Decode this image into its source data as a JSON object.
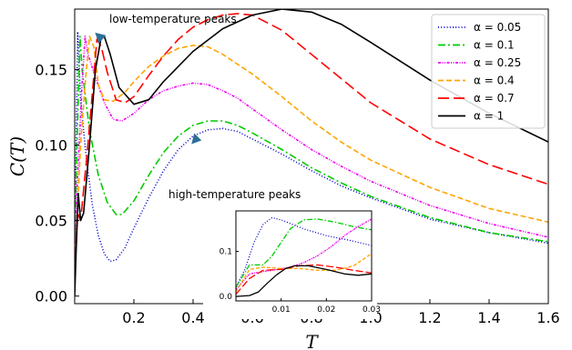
{
  "chart_data": [
    {
      "type": "line",
      "xlabel": "T",
      "ylabel": "C(T)",
      "xlim": [
        0,
        1.6
      ],
      "ylim": [
        -0.005,
        0.19
      ],
      "xticks": [
        "0.2",
        "0.4",
        "0.6",
        "0.8",
        "1.0",
        "1.2",
        "1.4",
        "1.6"
      ],
      "yticks": [
        "0.00",
        "0.05",
        "0.10",
        "0.15"
      ],
      "grid": false,
      "legend_position": "top-right",
      "annotations": [
        {
          "text": "low-temperature peaks",
          "arrow_to": [
            0.075,
            0.175
          ]
        },
        {
          "text": "high-temperature peaks",
          "arrow_to": [
            0.41,
            0.103
          ]
        }
      ],
      "series": [
        {
          "name": "α = 0.05",
          "color": "#0000cc",
          "dash": "1,2.2",
          "points": [
            [
              0,
              0.02
            ],
            [
              0.005,
              0.1
            ],
            [
              0.01,
              0.175
            ],
            [
              0.02,
              0.13
            ],
            [
              0.04,
              0.09
            ],
            [
              0.06,
              0.06
            ],
            [
              0.08,
              0.04
            ],
            [
              0.1,
              0.028
            ],
            [
              0.12,
              0.023
            ],
            [
              0.14,
              0.024
            ],
            [
              0.17,
              0.032
            ],
            [
              0.2,
              0.045
            ],
            [
              0.25,
              0.065
            ],
            [
              0.3,
              0.083
            ],
            [
              0.35,
              0.097
            ],
            [
              0.4,
              0.106
            ],
            [
              0.45,
              0.11
            ],
            [
              0.5,
              0.111
            ],
            [
              0.55,
              0.109
            ],
            [
              0.6,
              0.104
            ],
            [
              0.7,
              0.094
            ],
            [
              0.8,
              0.083
            ],
            [
              0.9,
              0.073
            ],
            [
              1.0,
              0.065
            ],
            [
              1.2,
              0.051
            ],
            [
              1.4,
              0.042
            ],
            [
              1.6,
              0.035
            ]
          ]
        },
        {
          "name": "α = 0.1",
          "color": "#00cc00",
          "dash": "8,3,2,3",
          "points": [
            [
              0,
              0.02
            ],
            [
              0.005,
              0.08
            ],
            [
              0.012,
              0.13
            ],
            [
              0.018,
              0.172
            ],
            [
              0.025,
              0.15
            ],
            [
              0.05,
              0.11
            ],
            [
              0.08,
              0.08
            ],
            [
              0.11,
              0.062
            ],
            [
              0.14,
              0.054
            ],
            [
              0.16,
              0.054
            ],
            [
              0.2,
              0.063
            ],
            [
              0.25,
              0.08
            ],
            [
              0.3,
              0.095
            ],
            [
              0.35,
              0.106
            ],
            [
              0.4,
              0.113
            ],
            [
              0.45,
              0.116
            ],
            [
              0.5,
              0.116
            ],
            [
              0.55,
              0.113
            ],
            [
              0.6,
              0.108
            ],
            [
              0.7,
              0.097
            ],
            [
              0.8,
              0.085
            ],
            [
              0.9,
              0.075
            ],
            [
              1.0,
              0.066
            ],
            [
              1.2,
              0.052
            ],
            [
              1.4,
              0.042
            ],
            [
              1.6,
              0.036
            ]
          ]
        },
        {
          "name": "α = 0.25",
          "color": "#ee00ee",
          "dash": "3,1.5,1,1.5,1,1.5",
          "points": [
            [
              0,
              0.015
            ],
            [
              0.005,
              0.06
            ],
            [
              0.015,
              0.1
            ],
            [
              0.025,
              0.14
            ],
            [
              0.035,
              0.172
            ],
            [
              0.045,
              0.16
            ],
            [
              0.07,
              0.145
            ],
            [
              0.1,
              0.128
            ],
            [
              0.13,
              0.117
            ],
            [
              0.16,
              0.116
            ],
            [
              0.2,
              0.121
            ],
            [
              0.25,
              0.13
            ],
            [
              0.3,
              0.136
            ],
            [
              0.35,
              0.139
            ],
            [
              0.4,
              0.141
            ],
            [
              0.45,
              0.14
            ],
            [
              0.5,
              0.136
            ],
            [
              0.55,
              0.131
            ],
            [
              0.6,
              0.124
            ],
            [
              0.7,
              0.11
            ],
            [
              0.8,
              0.097
            ],
            [
              0.9,
              0.086
            ],
            [
              1.0,
              0.076
            ],
            [
              1.2,
              0.06
            ],
            [
              1.4,
              0.048
            ],
            [
              1.6,
              0.039
            ]
          ]
        },
        {
          "name": "α = 0.4",
          "color": "#ffa500",
          "dash": "6,3",
          "points": [
            [
              0,
              0.015
            ],
            [
              0.01,
              0.06
            ],
            [
              0.02,
              0.1
            ],
            [
              0.035,
              0.14
            ],
            [
              0.05,
              0.172
            ],
            [
              0.065,
              0.165
            ],
            [
              0.08,
              0.14
            ],
            [
              0.1,
              0.13
            ],
            [
              0.13,
              0.129
            ],
            [
              0.17,
              0.135
            ],
            [
              0.2,
              0.142
            ],
            [
              0.25,
              0.152
            ],
            [
              0.3,
              0.159
            ],
            [
              0.35,
              0.164
            ],
            [
              0.4,
              0.166
            ],
            [
              0.45,
              0.165
            ],
            [
              0.5,
              0.16
            ],
            [
              0.6,
              0.147
            ],
            [
              0.7,
              0.132
            ],
            [
              0.8,
              0.116
            ],
            [
              0.9,
              0.102
            ],
            [
              1.0,
              0.09
            ],
            [
              1.2,
              0.072
            ],
            [
              1.4,
              0.058
            ],
            [
              1.6,
              0.049
            ]
          ]
        },
        {
          "name": "α = 0.7",
          "color": "#ff0000",
          "dash": "12,5",
          "points": [
            [
              0,
              0.015
            ],
            [
              0.01,
              0.055
            ],
            [
              0.02,
              0.05
            ],
            [
              0.04,
              0.09
            ],
            [
              0.06,
              0.135
            ],
            [
              0.075,
              0.17
            ],
            [
              0.09,
              0.165
            ],
            [
              0.11,
              0.148
            ],
            [
              0.14,
              0.13
            ],
            [
              0.17,
              0.128
            ],
            [
              0.2,
              0.132
            ],
            [
              0.25,
              0.146
            ],
            [
              0.3,
              0.159
            ],
            [
              0.35,
              0.17
            ],
            [
              0.4,
              0.178
            ],
            [
              0.45,
              0.183
            ],
            [
              0.5,
              0.186
            ],
            [
              0.55,
              0.187
            ],
            [
              0.6,
              0.186
            ],
            [
              0.7,
              0.176
            ],
            [
              0.8,
              0.16
            ],
            [
              0.9,
              0.144
            ],
            [
              1.0,
              0.128
            ],
            [
              1.2,
              0.104
            ],
            [
              1.4,
              0.087
            ],
            [
              1.6,
              0.074
            ]
          ]
        },
        {
          "name": "α = 1",
          "color": "#000000",
          "dash": "",
          "points": [
            [
              0,
              0.0
            ],
            [
              0.005,
              0.03
            ],
            [
              0.012,
              0.068
            ],
            [
              0.02,
              0.05
            ],
            [
              0.03,
              0.055
            ],
            [
              0.05,
              0.1
            ],
            [
              0.07,
              0.15
            ],
            [
              0.09,
              0.172
            ],
            [
              0.1,
              0.172
            ],
            [
              0.12,
              0.16
            ],
            [
              0.15,
              0.138
            ],
            [
              0.2,
              0.127
            ],
            [
              0.25,
              0.13
            ],
            [
              0.3,
              0.142
            ],
            [
              0.4,
              0.162
            ],
            [
              0.5,
              0.177
            ],
            [
              0.6,
              0.186
            ],
            [
              0.7,
              0.19
            ],
            [
              0.8,
              0.188
            ],
            [
              0.9,
              0.18
            ],
            [
              1.0,
              0.168
            ],
            [
              1.2,
              0.143
            ],
            [
              1.4,
              0.121
            ],
            [
              1.6,
              0.102
            ]
          ]
        }
      ]
    },
    {
      "type": "line",
      "role": "inset",
      "xlim": [
        0,
        0.03
      ],
      "ylim": [
        -0.01,
        0.19
      ],
      "xticks": [
        "0.01",
        "0.02",
        "0.03"
      ],
      "yticks": [
        "0.0",
        "0.1"
      ],
      "series": [
        {
          "name": "α = 0.05",
          "color": "#0000cc",
          "dash": "1,2",
          "points": [
            [
              0,
              0.02
            ],
            [
              0.002,
              0.06
            ],
            [
              0.004,
              0.12
            ],
            [
              0.006,
              0.16
            ],
            [
              0.008,
              0.175
            ],
            [
              0.01,
              0.17
            ],
            [
              0.015,
              0.15
            ],
            [
              0.02,
              0.135
            ],
            [
              0.025,
              0.125
            ],
            [
              0.03,
              0.113
            ]
          ]
        },
        {
          "name": "α = 0.1",
          "color": "#00cc00",
          "dash": "6,2,1.5,2",
          "points": [
            [
              0,
              0.02
            ],
            [
              0.003,
              0.07
            ],
            [
              0.006,
              0.07
            ],
            [
              0.008,
              0.09
            ],
            [
              0.01,
              0.12
            ],
            [
              0.012,
              0.15
            ],
            [
              0.015,
              0.17
            ],
            [
              0.018,
              0.172
            ],
            [
              0.022,
              0.165
            ],
            [
              0.026,
              0.155
            ],
            [
              0.03,
              0.148
            ]
          ]
        },
        {
          "name": "α = 0.25",
          "color": "#ee00ee",
          "dash": "2,1,1,1",
          "points": [
            [
              0,
              0.015
            ],
            [
              0.003,
              0.05
            ],
            [
              0.006,
              0.055
            ],
            [
              0.009,
              0.06
            ],
            [
              0.012,
              0.065
            ],
            [
              0.015,
              0.075
            ],
            [
              0.018,
              0.09
            ],
            [
              0.021,
              0.11
            ],
            [
              0.024,
              0.135
            ],
            [
              0.027,
              0.155
            ],
            [
              0.03,
              0.172
            ]
          ]
        },
        {
          "name": "α = 0.4",
          "color": "#ffa500",
          "dash": "4,2",
          "points": [
            [
              0,
              0.01
            ],
            [
              0.003,
              0.06
            ],
            [
              0.006,
              0.065
            ],
            [
              0.01,
              0.062
            ],
            [
              0.014,
              0.062
            ],
            [
              0.018,
              0.058
            ],
            [
              0.022,
              0.058
            ],
            [
              0.026,
              0.068
            ],
            [
              0.03,
              0.095
            ]
          ]
        },
        {
          "name": "α = 0.7",
          "color": "#ff0000",
          "dash": "8,3",
          "points": [
            [
              0,
              0.005
            ],
            [
              0.003,
              0.04
            ],
            [
              0.006,
              0.058
            ],
            [
              0.01,
              0.06
            ],
            [
              0.014,
              0.068
            ],
            [
              0.018,
              0.07
            ],
            [
              0.022,
              0.065
            ],
            [
              0.026,
              0.058
            ],
            [
              0.03,
              0.052
            ]
          ]
        },
        {
          "name": "α = 1",
          "color": "#000000",
          "dash": "",
          "points": [
            [
              0,
              0.0
            ],
            [
              0.003,
              0.002
            ],
            [
              0.005,
              0.01
            ],
            [
              0.007,
              0.03
            ],
            [
              0.009,
              0.048
            ],
            [
              0.011,
              0.062
            ],
            [
              0.013,
              0.068
            ],
            [
              0.016,
              0.068
            ],
            [
              0.02,
              0.06
            ],
            [
              0.024,
              0.05
            ],
            [
              0.027,
              0.047
            ],
            [
              0.03,
              0.05
            ]
          ]
        }
      ]
    }
  ]
}
